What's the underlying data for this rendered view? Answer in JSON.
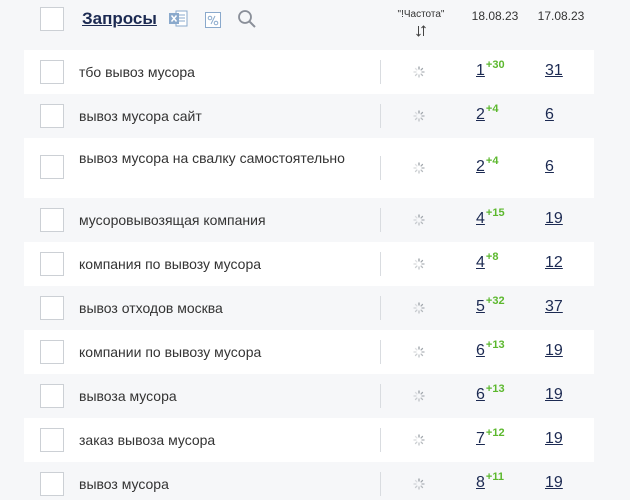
{
  "header": {
    "title": "Запросы",
    "freq_label": "\"!Частота\"",
    "date1": "18.08.23",
    "date2": "17.08.23"
  },
  "colors": {
    "highlight": "#c9f3d6",
    "delta": "#5cb82e",
    "link": "#1c2a52"
  },
  "icons": [
    "excel-icon",
    "filter-icon",
    "search-icon",
    "sort-icon",
    "loading-spinner-icon"
  ],
  "rows": [
    {
      "query": "тбо вывоз мусора",
      "pos1": "1",
      "delta": "+30",
      "pos2": "31"
    },
    {
      "query": "вывоз мусора сайт",
      "pos1": "2",
      "delta": "+4",
      "pos2": "6"
    },
    {
      "query": "вывоз мусора на свалку самостоятельно",
      "pos1": "2",
      "delta": "+4",
      "pos2": "6"
    },
    {
      "query": "мусоровывозящая компания",
      "pos1": "4",
      "delta": "+15",
      "pos2": "19"
    },
    {
      "query": "компания по вывозу мусора",
      "pos1": "4",
      "delta": "+8",
      "pos2": "12"
    },
    {
      "query": "вывоз отходов москва",
      "pos1": "5",
      "delta": "+32",
      "pos2": "37"
    },
    {
      "query": "компании по вывозу мусора",
      "pos1": "6",
      "delta": "+13",
      "pos2": "19"
    },
    {
      "query": "вывоза мусора",
      "pos1": "6",
      "delta": "+13",
      "pos2": "19"
    },
    {
      "query": "заказ вывоза мусора",
      "pos1": "7",
      "delta": "+12",
      "pos2": "19"
    },
    {
      "query": "вывоз мусора",
      "pos1": "8",
      "delta": "+11",
      "pos2": "19"
    }
  ]
}
